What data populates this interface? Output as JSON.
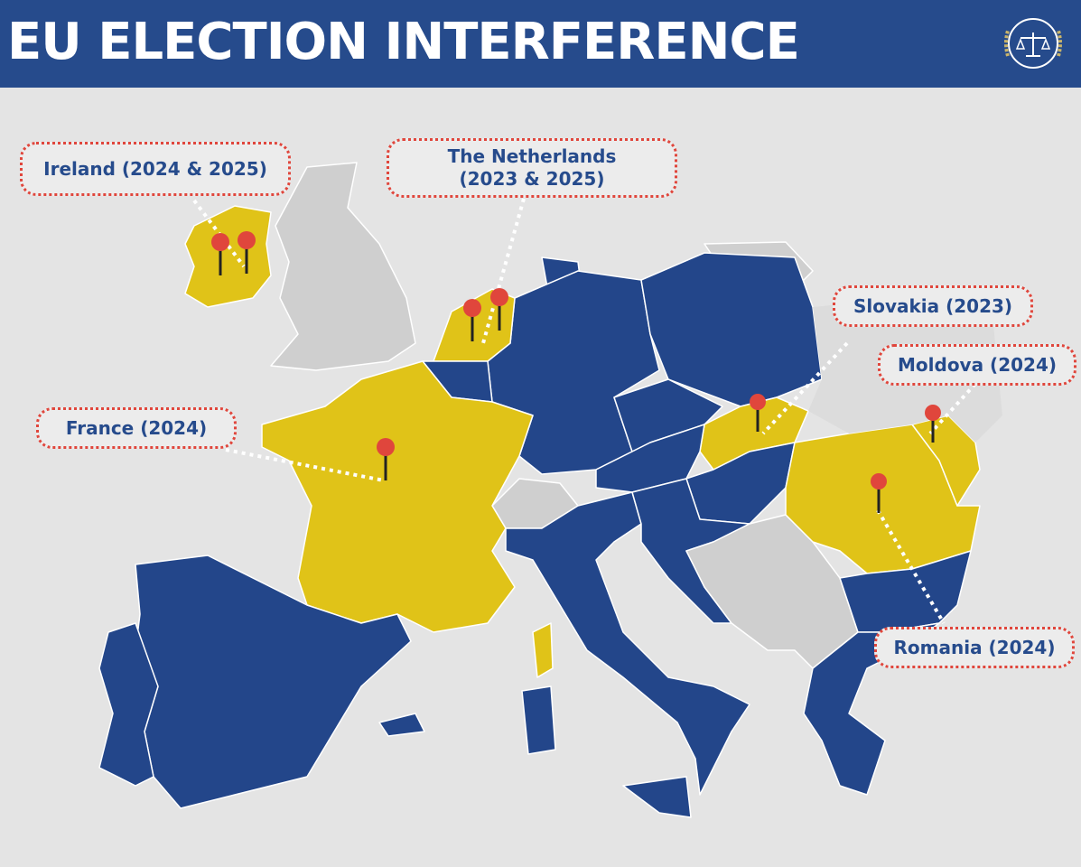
{
  "header": {
    "title": "EU ELECTION INTERFERENCE",
    "logo_icon": "scales-of-justice-laurel-logo"
  },
  "colors": {
    "header": "#264b8c",
    "targeted_country": "#e0c318",
    "eu_country": "#23468a",
    "non_eu": "#cfcfcf",
    "background": "#e4e4e4",
    "pin": "#e0463c",
    "label_border": "#e0463c"
  },
  "labels": {
    "ireland": "Ireland (2024 & 2025)",
    "netherlands_1": "The Netherlands",
    "netherlands_2": "(2023 & 2025)",
    "slovakia": "Slovakia (2023)",
    "moldova": "Moldova (2024)",
    "france": "France (2024)",
    "romania": "Romania (2024)"
  }
}
